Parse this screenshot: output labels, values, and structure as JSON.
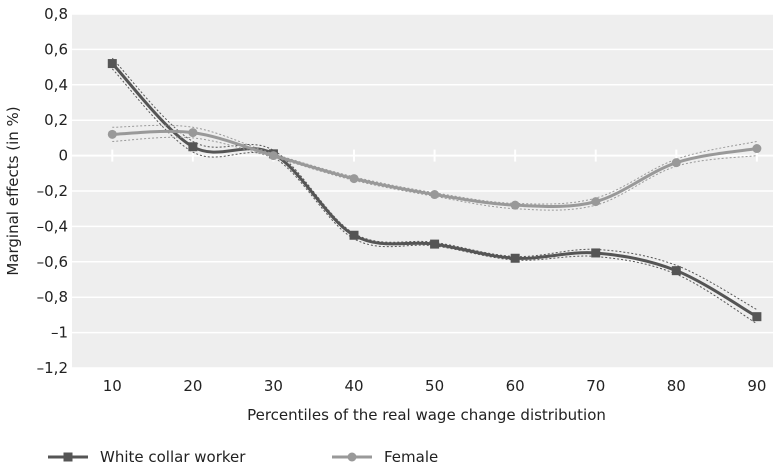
{
  "chart_data": {
    "type": "line",
    "xlabel": "Percentiles of the real wage change distribution",
    "ylabel": "Marginal effects (in %)",
    "x": [
      10,
      20,
      30,
      40,
      50,
      60,
      70,
      80,
      90
    ],
    "x_tick_labels": [
      "10",
      "20",
      "30",
      "40",
      "50",
      "60",
      "70",
      "80",
      "90"
    ],
    "xlim": [
      5,
      92
    ],
    "ylim": [
      -1.2,
      0.8
    ],
    "y_ticks": [
      0.8,
      0.6,
      0.4,
      0.2,
      0,
      -0.2,
      -0.4,
      -0.6,
      -0.8,
      -1,
      -1.2
    ],
    "y_tick_labels": [
      "0,8",
      "0,6",
      "0,4",
      "0,2",
      "0",
      "–0,2",
      "–0,4",
      "–0,6",
      "–0,8",
      "–1",
      "–1,2"
    ],
    "grid": "horizontal",
    "legend_position": "bottom-left",
    "series": [
      {
        "name": "White collar worker",
        "color": "#555555",
        "marker": "square",
        "values": [
          0.52,
          0.05,
          0.01,
          -0.45,
          -0.5,
          -0.58,
          -0.55,
          -0.65,
          -0.91
        ],
        "ci_upper": [
          0.55,
          0.08,
          0.03,
          -0.44,
          -0.49,
          -0.57,
          -0.53,
          -0.62,
          -0.87
        ],
        "ci_lower": [
          0.49,
          0.02,
          -0.01,
          -0.47,
          -0.51,
          -0.59,
          -0.57,
          -0.67,
          -0.95
        ]
      },
      {
        "name": "Female",
        "color": "#999999",
        "marker": "circle",
        "values": [
          0.12,
          0.13,
          0.0,
          -0.13,
          -0.22,
          -0.28,
          -0.26,
          -0.04,
          0.04
        ],
        "ci_upper": [
          0.16,
          0.16,
          0.01,
          -0.12,
          -0.21,
          -0.27,
          -0.24,
          -0.02,
          0.08
        ],
        "ci_lower": [
          0.08,
          0.1,
          -0.01,
          -0.14,
          -0.23,
          -0.3,
          -0.28,
          -0.06,
          0.0
        ]
      }
    ]
  }
}
